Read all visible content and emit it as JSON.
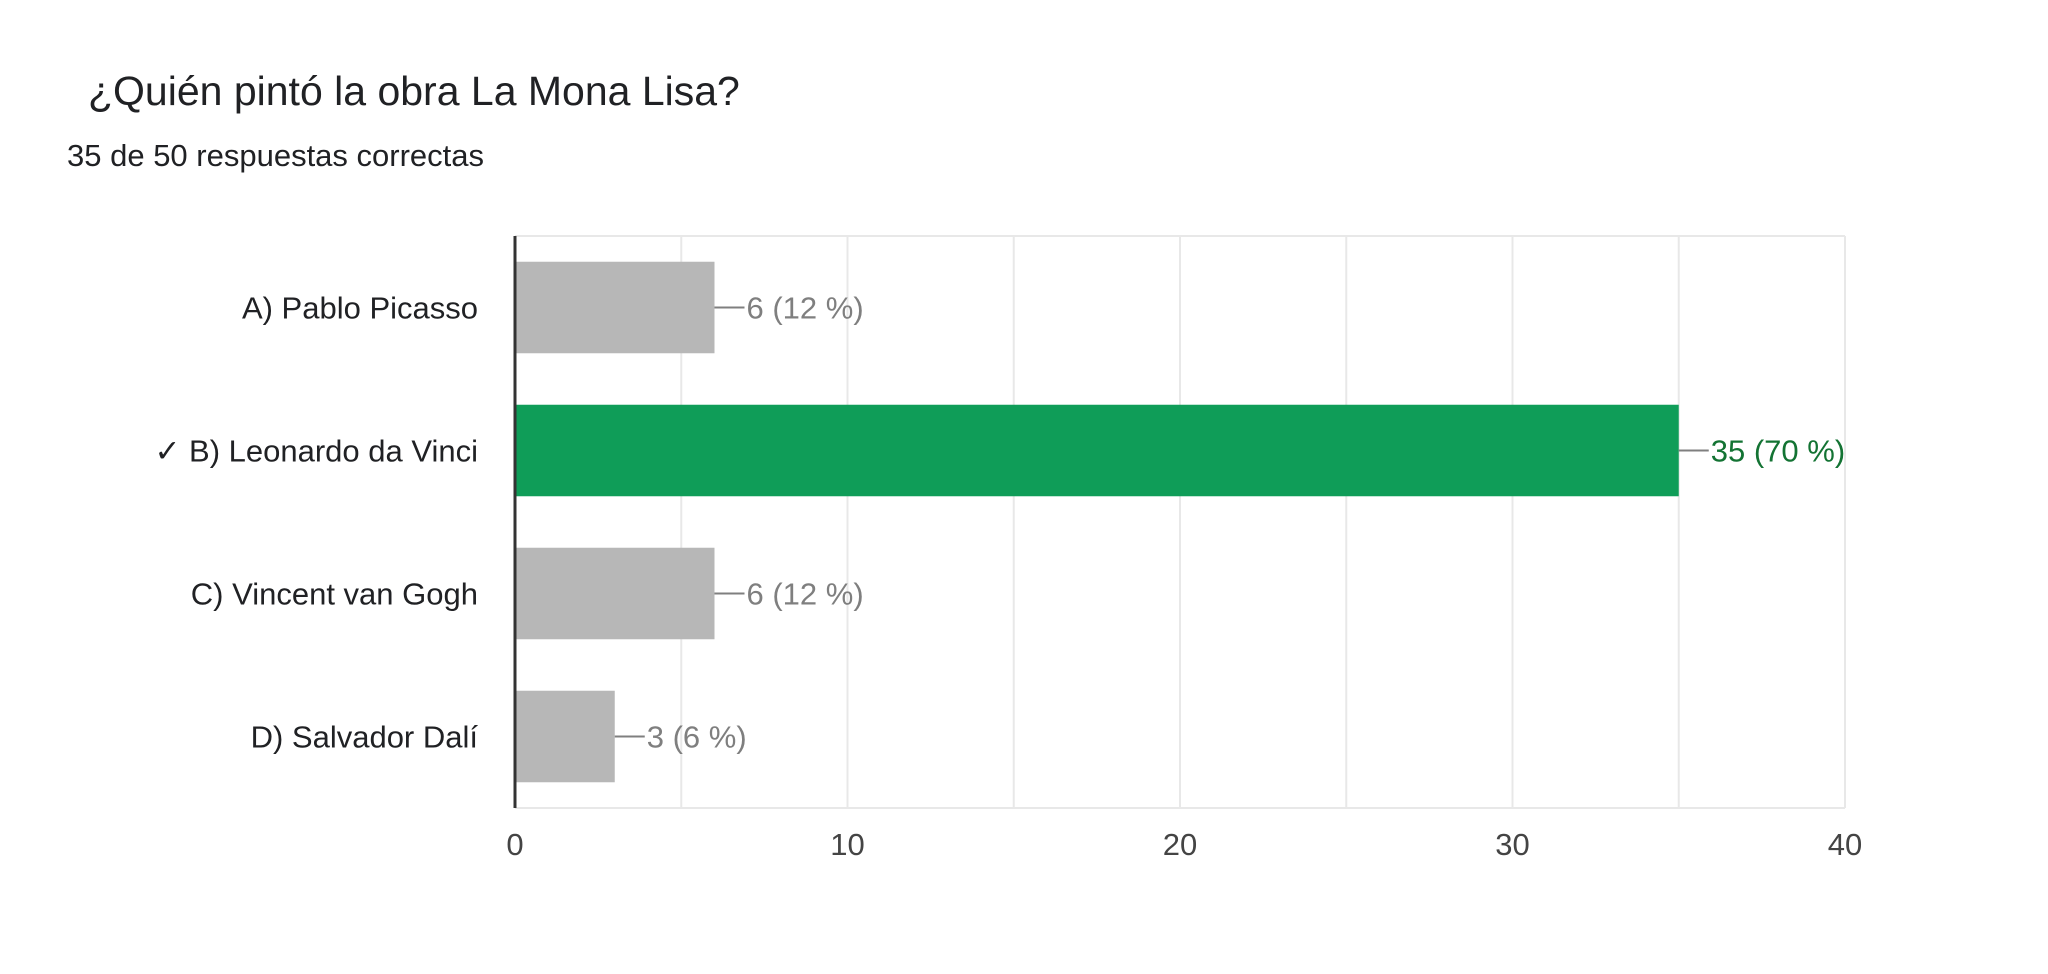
{
  "header": {
    "title": "¿Quién pintó la obra La Mona Lisa?",
    "summary": "35 de 50 respuestas correctas"
  },
  "colors": {
    "correct": "#0f9d58",
    "incorrect": "#b7b7b7",
    "correct_label": "#137333",
    "incorrect_label": "#7f7f7f",
    "grid": "#e8e8e8",
    "axis": "#333333"
  },
  "chart_data": {
    "type": "bar",
    "orientation": "horizontal",
    "categories": [
      "A) Pablo Picasso",
      "✓ B) Leonardo da Vinci",
      "C) Vincent van Gogh",
      "D) Salvador Dalí"
    ],
    "values": [
      6,
      35,
      6,
      3
    ],
    "correct": [
      false,
      true,
      false,
      false
    ],
    "data_labels": [
      "6 (12 %)",
      "35 (70 %)",
      "6 (12 %)",
      "3 (6 %)"
    ],
    "xlim": [
      0,
      40
    ],
    "xticks": [
      0,
      10,
      20,
      30,
      40
    ],
    "grid": true,
    "legend": false
  }
}
